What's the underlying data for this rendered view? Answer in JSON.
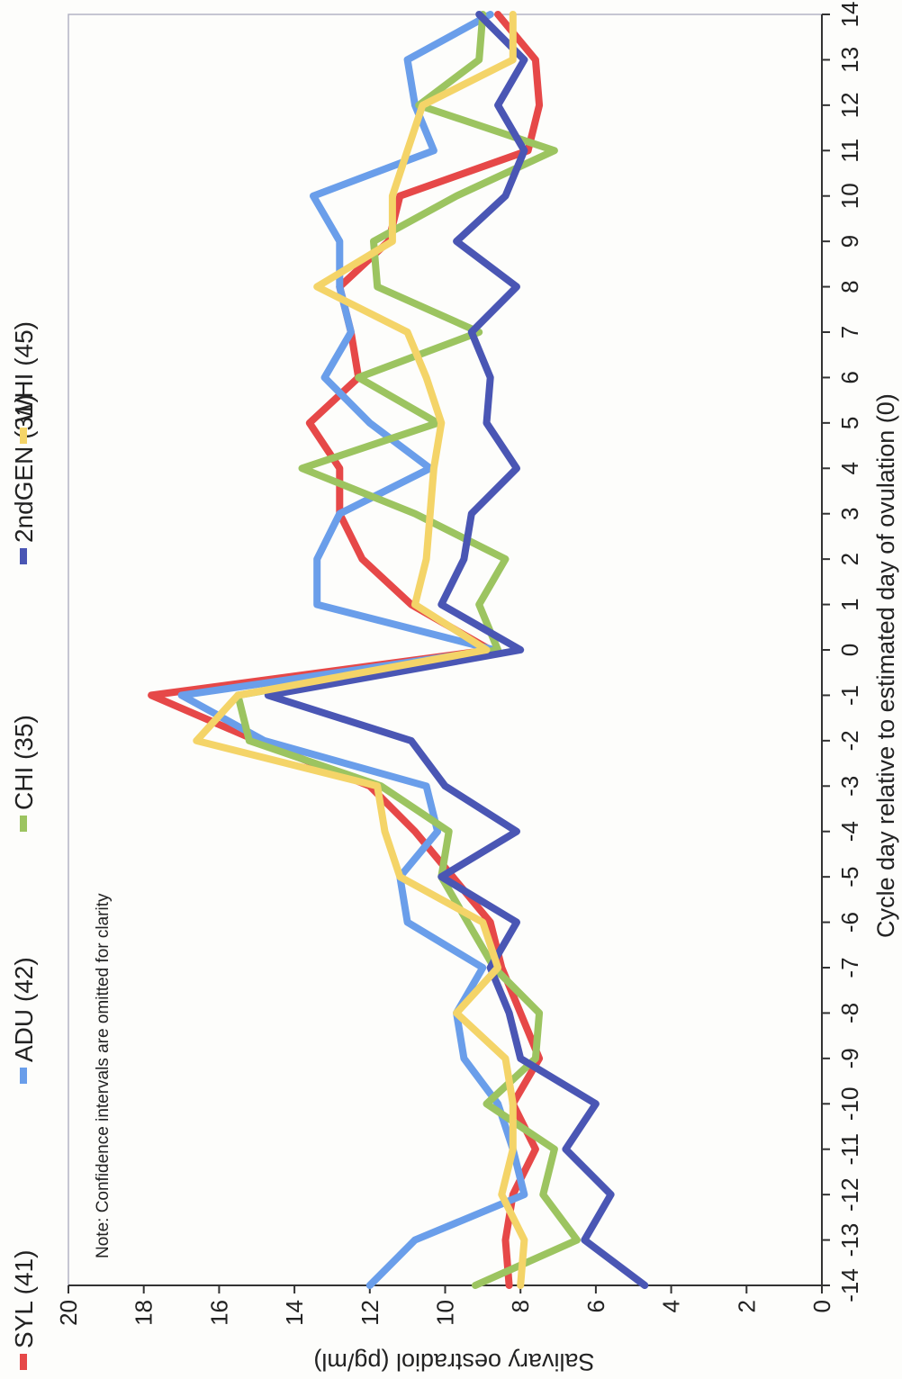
{
  "chart_data": {
    "type": "line",
    "title": "",
    "xlabel": "Cycle day relative to estimated day of ovulation (0)",
    "ylabel": "Salivary oestradiol (pg/ml)",
    "note": "Note: Confidence intervals are omitted for clarity",
    "x": [
      -14,
      -13,
      -12,
      -11,
      -10,
      -9,
      -8,
      -7,
      -6,
      -5,
      -4,
      -3,
      -2,
      -1,
      0,
      1,
      2,
      3,
      4,
      5,
      6,
      7,
      8,
      9,
      10,
      11,
      12,
      13,
      14
    ],
    "xlim": [
      -14,
      14
    ],
    "ylim": [
      0,
      20
    ],
    "y_ticks": [
      0,
      2,
      4,
      6,
      8,
      10,
      12,
      14,
      16,
      18,
      20
    ],
    "grid": false,
    "legend_position": "top",
    "series": [
      {
        "name": "SYL (41)",
        "color": "#e64848",
        "values": [
          8.3,
          8.4,
          8.2,
          7.6,
          8.2,
          7.5,
          8.0,
          8.5,
          8.8,
          9.8,
          10.8,
          12.0,
          15.0,
          17.8,
          8.8,
          10.9,
          12.2,
          12.8,
          12.8,
          13.6,
          12.3,
          12.5,
          12.8,
          11.5,
          11.2,
          7.8,
          7.5,
          7.6,
          8.6
        ]
      },
      {
        "name": "ADU (42)",
        "color": "#6a9eea",
        "values": [
          12.0,
          10.8,
          7.9,
          8.2,
          8.6,
          9.5,
          9.7,
          9.0,
          11.0,
          11.2,
          10.2,
          10.5,
          14.8,
          17.0,
          8.7,
          13.4,
          13.4,
          12.8,
          10.4,
          12.0,
          13.2,
          12.5,
          12.8,
          12.8,
          13.5,
          10.3,
          10.8,
          11.0,
          8.8
        ]
      },
      {
        "name": "CHI (35)",
        "color": "#9cc460",
        "values": [
          9.2,
          6.5,
          7.4,
          7.1,
          8.9,
          7.6,
          7.5,
          8.7,
          9.4,
          10.1,
          9.9,
          11.7,
          15.2,
          15.5,
          8.6,
          9.1,
          8.4,
          10.8,
          13.8,
          10.2,
          12.3,
          9.1,
          11.8,
          11.9,
          9.7,
          7.1,
          10.7,
          9.1,
          9.0
        ]
      },
      {
        "name": "2ndGEN (31)",
        "color": "#4a56b4",
        "values": [
          4.7,
          6.3,
          5.6,
          6.8,
          6.0,
          8.0,
          8.3,
          8.8,
          8.1,
          10.1,
          8.1,
          10.0,
          10.9,
          14.7,
          8.0,
          10.1,
          9.5,
          9.3,
          8.1,
          8.9,
          8.8,
          9.3,
          8.1,
          9.7,
          8.4,
          7.9,
          8.6,
          7.9,
          9.1
        ]
      },
      {
        "name": "WHI (45)",
        "color": "#f4d468",
        "values": [
          8.0,
          7.9,
          8.5,
          8.2,
          8.2,
          8.4,
          9.7,
          8.6,
          9.0,
          11.2,
          11.6,
          11.8,
          16.6,
          15.5,
          8.9,
          10.8,
          10.5,
          10.4,
          10.3,
          10.1,
          10.5,
          11.0,
          13.4,
          11.4,
          11.4,
          11.0,
          10.6,
          8.2,
          8.2
        ]
      }
    ]
  }
}
